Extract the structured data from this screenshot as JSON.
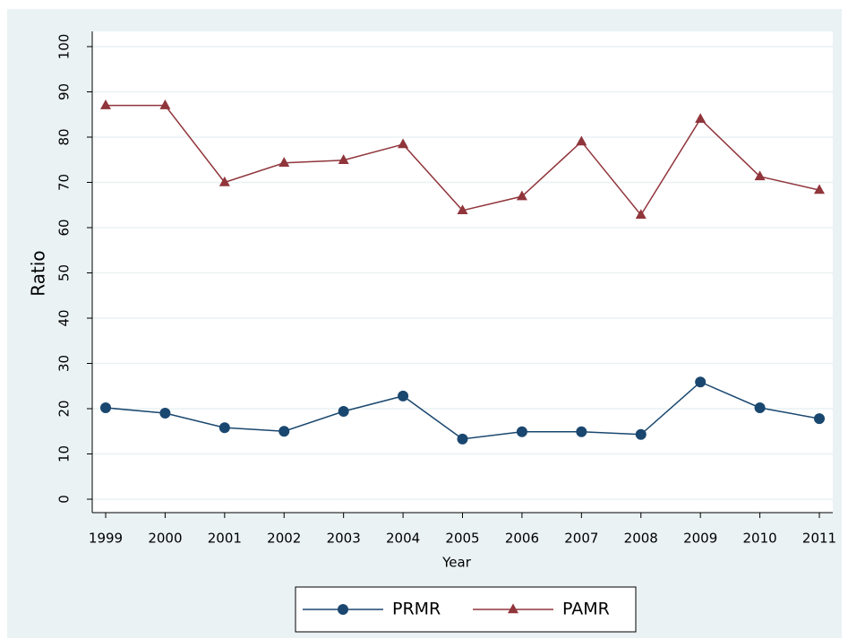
{
  "chart_data": {
    "type": "line",
    "x_label": "Year",
    "y_label": "Ratio",
    "categories": [
      "1999",
      "2000",
      "2001",
      "2002",
      "2003",
      "2004",
      "2005",
      "2006",
      "2007",
      "2008",
      "2009",
      "2010",
      "2011"
    ],
    "series": [
      {
        "name": "PRMR",
        "color": "#1a476f",
        "marker": "circle",
        "values": [
          20.2,
          19,
          15.8,
          15,
          19.4,
          22.8,
          13.3,
          14.9,
          14.9,
          14.3,
          25.9,
          20.2,
          17.8
        ]
      },
      {
        "name": "PAMR",
        "color": "#90353b",
        "marker": "triangle",
        "values": [
          87,
          87,
          70,
          74.3,
          74.9,
          78.4,
          63.8,
          66.9,
          79,
          62.8,
          84,
          71.3,
          68.3
        ]
      }
    ],
    "ylim": [
      0,
      100
    ],
    "yticks": [
      0,
      10,
      20,
      30,
      40,
      50,
      60,
      70,
      80,
      90,
      100
    ],
    "grid": true,
    "legend": "bottom"
  }
}
